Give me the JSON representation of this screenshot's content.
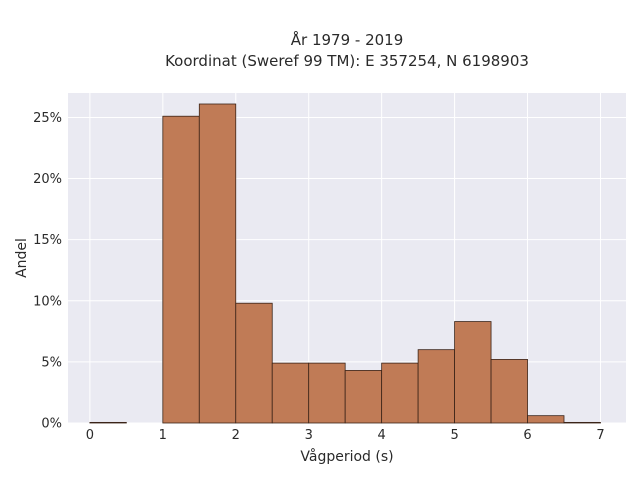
{
  "chart_data": {
    "type": "bar",
    "title_line1": "År 1979 - 2019",
    "title_line2": "Koordinat (Sweref 99 TM): E 357254, N 6198903",
    "xlabel": "Vågperiod (s)",
    "ylabel": "Andel",
    "xlim": [
      -0.3,
      7.35
    ],
    "ylim": [
      0,
      0.27
    ],
    "x_ticks": [
      0,
      1,
      2,
      3,
      4,
      5,
      6,
      7
    ],
    "x_tick_labels": [
      "0",
      "1",
      "2",
      "3",
      "4",
      "5",
      "6",
      "7"
    ],
    "y_ticks": [
      0,
      0.05,
      0.1,
      0.15,
      0.2,
      0.25
    ],
    "y_tick_labels": [
      "0%",
      "5%",
      "10%",
      "15%",
      "20%",
      "25%"
    ],
    "bin_width": 0.5,
    "bins": [
      {
        "x0": 0.0,
        "value": 0.0005
      },
      {
        "x0": 0.5,
        "value": 0.0
      },
      {
        "x0": 1.0,
        "value": 0.251
      },
      {
        "x0": 1.5,
        "value": 0.261
      },
      {
        "x0": 2.0,
        "value": 0.098
      },
      {
        "x0": 2.5,
        "value": 0.049
      },
      {
        "x0": 3.0,
        "value": 0.049
      },
      {
        "x0": 3.5,
        "value": 0.043
      },
      {
        "x0": 4.0,
        "value": 0.049
      },
      {
        "x0": 4.5,
        "value": 0.06
      },
      {
        "x0": 5.0,
        "value": 0.083
      },
      {
        "x0": 5.5,
        "value": 0.052
      },
      {
        "x0": 6.0,
        "value": 0.006
      },
      {
        "x0": 6.5,
        "value": 0.0005
      }
    ],
    "grid": true,
    "colors": {
      "bar_fill": "#c07b56",
      "bar_edge": "#3b2418",
      "plot_background": "#eaeaf2",
      "grid": "#ffffff"
    }
  }
}
